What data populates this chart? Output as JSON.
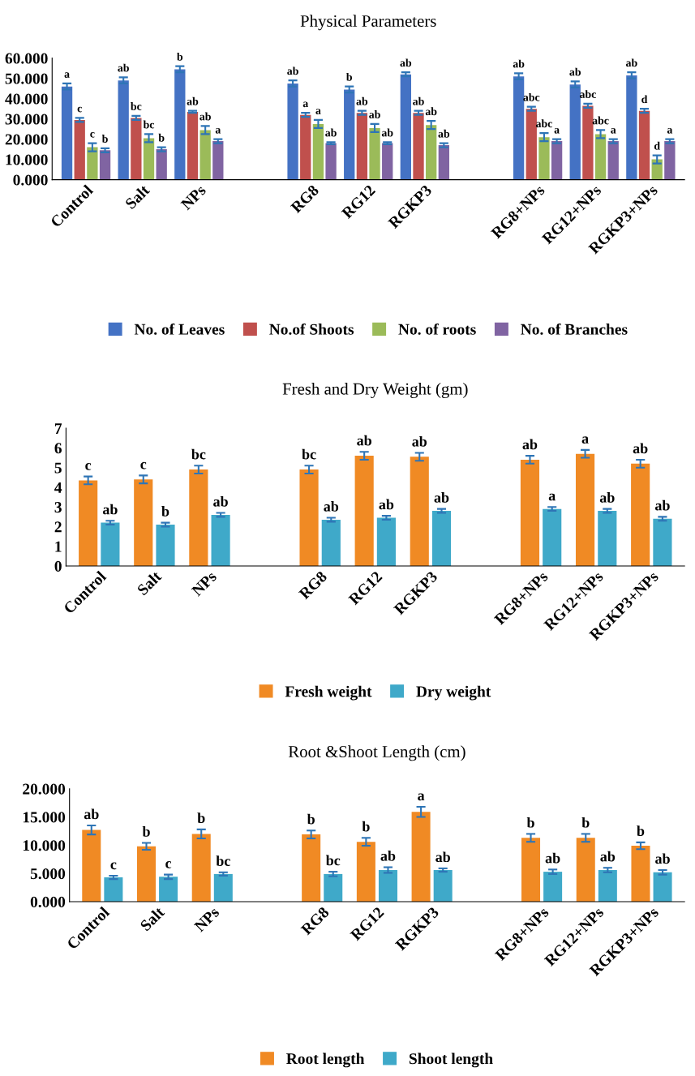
{
  "chart_data": [
    {
      "type": "bar",
      "title": "Physical Parameters",
      "categories": [
        "Control",
        "Salt",
        "NPs",
        null,
        "RG8",
        "RG12",
        "RGKP3",
        null,
        "RG8+NPs",
        "RG12+NPs",
        "RGKP3+NPs"
      ],
      "series": [
        {
          "name": "No. of Leaves",
          "color": "#4472c4",
          "values": [
            46,
            49,
            54.5,
            null,
            47.5,
            44.5,
            52,
            null,
            51,
            47,
            51.5
          ],
          "errors": [
            1.5,
            1.5,
            1.5,
            null,
            1.5,
            1.5,
            1,
            null,
            1.5,
            1.5,
            1.5
          ],
          "value_labels": [
            "a",
            "ab",
            "b",
            null,
            "ab",
            "b",
            "ab",
            null,
            "ab",
            "ab",
            "ab"
          ]
        },
        {
          "name": "No.of Shoots",
          "color": "#c0504d",
          "values": [
            29.5,
            30.5,
            33.5,
            null,
            32,
            33,
            33,
            null,
            35,
            36.5,
            34
          ],
          "errors": [
            1,
            1,
            0.5,
            null,
            1,
            1,
            1,
            null,
            1,
            1,
            1
          ],
          "value_labels": [
            "c",
            "bc",
            "ab",
            null,
            "a",
            "ab",
            "ab",
            null,
            "abc",
            "abc",
            "d"
          ]
        },
        {
          "name": "No. of roots",
          "color": "#9bbb59",
          "values": [
            16,
            20.5,
            24.5,
            null,
            27.5,
            25.5,
            27,
            null,
            21,
            22.5,
            10
          ],
          "errors": [
            2,
            2,
            2,
            null,
            2,
            2,
            2,
            null,
            2,
            2,
            2
          ],
          "value_labels": [
            "c",
            "bc",
            "ab",
            null,
            "a",
            "ab",
            "ab",
            null,
            "abc",
            "abc",
            "d"
          ]
        },
        {
          "name": "No. of Branches",
          "color": "#8064a2",
          "values": [
            14.5,
            15,
            19,
            null,
            18,
            18,
            17,
            null,
            19,
            19,
            19
          ],
          "errors": [
            1,
            1,
            1,
            null,
            0.5,
            0.5,
            1,
            null,
            1,
            1,
            1
          ],
          "value_labels": [
            "b",
            "b",
            "a",
            null,
            "ab",
            "ab",
            "ab",
            null,
            "a",
            "a",
            "a"
          ]
        }
      ],
      "ylim": [
        0,
        60
      ],
      "yticks": [
        {
          "value": 0,
          "label": "0.000"
        },
        {
          "value": 10,
          "label": "10.000"
        },
        {
          "value": 20,
          "label": "20.000"
        },
        {
          "value": 30,
          "label": "30.000"
        },
        {
          "value": 40,
          "label": "40.000"
        },
        {
          "value": 50,
          "label": "50.000"
        },
        {
          "value": 60,
          "label": "60.000"
        }
      ],
      "legend": "bottom",
      "grid": false
    },
    {
      "type": "bar",
      "title": "Fresh and Dry Weight (gm)",
      "categories": [
        "Control",
        "Salt",
        "NPs",
        null,
        "RG8",
        "RG12",
        "RGKP3",
        null,
        "RG8+NPs",
        "RG12+NPs",
        "RGKP3+NPs"
      ],
      "series": [
        {
          "name": "Fresh weight",
          "color": "#f08a24",
          "values": [
            4.35,
            4.4,
            4.9,
            null,
            4.9,
            5.6,
            5.55,
            null,
            5.4,
            5.7,
            5.2
          ],
          "errors": [
            0.2,
            0.2,
            0.2,
            null,
            0.2,
            0.2,
            0.2,
            null,
            0.2,
            0.2,
            0.2
          ],
          "value_labels": [
            "c",
            "c",
            "bc",
            null,
            "bc",
            "ab",
            "ab",
            null,
            "ab",
            "a",
            "ab"
          ]
        },
        {
          "name": "Dry weight",
          "color": "#3fa9c9",
          "values": [
            2.2,
            2.1,
            2.6,
            null,
            2.35,
            2.45,
            2.8,
            null,
            2.9,
            2.8,
            2.4
          ],
          "errors": [
            0.1,
            0.1,
            0.1,
            null,
            0.1,
            0.1,
            0.1,
            null,
            0.1,
            0.1,
            0.1
          ],
          "value_labels": [
            "ab",
            "b",
            "ab",
            null,
            "ab",
            "ab",
            "ab",
            null,
            "a",
            "ab",
            "ab"
          ]
        }
      ],
      "ylim": [
        0,
        7
      ],
      "yticks": [
        0,
        1,
        2,
        3,
        4,
        5,
        6,
        7
      ],
      "legend": "bottom",
      "grid": false
    },
    {
      "type": "bar",
      "title": "Root &Shoot Length (cm)",
      "categories": [
        "Control",
        "Salt",
        "NPs",
        null,
        "RG8",
        "RG12",
        "RGKP3",
        null,
        "RG8+NPs",
        "RG12+NPs",
        "RGKP3+NPs"
      ],
      "series": [
        {
          "name": "Root length",
          "color": "#f08a24",
          "values": [
            12.7,
            9.8,
            12.0,
            null,
            11.9,
            10.6,
            15.9,
            null,
            11.3,
            11.3,
            9.9
          ],
          "errors": [
            0.8,
            0.6,
            0.8,
            null,
            0.7,
            0.7,
            0.9,
            null,
            0.7,
            0.7,
            0.6
          ],
          "value_labels": [
            "ab",
            "b",
            "b",
            null,
            "b",
            "b",
            "a",
            null,
            "b",
            "b",
            "b"
          ]
        },
        {
          "name": "Shoot length",
          "color": "#3fa9c9",
          "values": [
            4.3,
            4.4,
            4.9,
            null,
            4.9,
            5.6,
            5.6,
            null,
            5.3,
            5.6,
            5.2
          ],
          "errors": [
            0.3,
            0.4,
            0.3,
            null,
            0.4,
            0.5,
            0.3,
            null,
            0.4,
            0.4,
            0.4
          ],
          "value_labels": [
            "c",
            "c",
            "bc",
            null,
            "bc",
            "ab",
            "ab",
            null,
            "ab",
            "ab",
            "ab"
          ]
        }
      ],
      "ylim": [
        0,
        20
      ],
      "yticks": [
        {
          "value": 0,
          "label": "0.000"
        },
        {
          "value": 5,
          "label": "5.000"
        },
        {
          "value": 10,
          "label": "10.000"
        },
        {
          "value": 15,
          "label": "15.000"
        },
        {
          "value": 20,
          "label": "20.000"
        }
      ],
      "legend": "bottom",
      "grid": false
    }
  ]
}
